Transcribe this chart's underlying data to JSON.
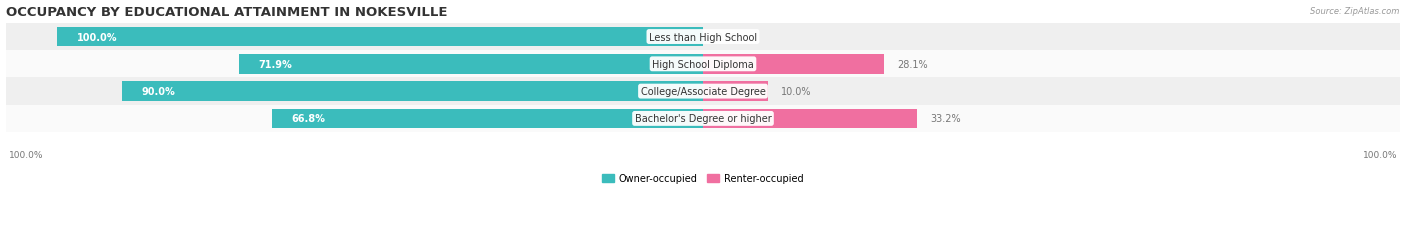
{
  "title": "OCCUPANCY BY EDUCATIONAL ATTAINMENT IN NOKESVILLE",
  "source": "Source: ZipAtlas.com",
  "categories": [
    "Less than High School",
    "High School Diploma",
    "College/Associate Degree",
    "Bachelor's Degree or higher"
  ],
  "owner_pct": [
    100.0,
    71.9,
    90.0,
    66.8
  ],
  "renter_pct": [
    0.0,
    28.1,
    10.0,
    33.2
  ],
  "owner_color": "#3BBCBC",
  "renter_color": "#F06FA0",
  "row_bg_colors": [
    "#EFEFEF",
    "#FAFAFA",
    "#EFEFEF",
    "#FAFAFA"
  ],
  "axis_label_left": "100.0%",
  "axis_label_right": "100.0%",
  "legend_owner": "Owner-occupied",
  "legend_renter": "Renter-occupied",
  "title_fontsize": 9.5,
  "label_fontsize": 7.0,
  "cat_fontsize": 7.0,
  "bar_height": 0.72,
  "figsize": [
    14.06,
    2.32
  ],
  "dpi": 100,
  "total_width": 100
}
